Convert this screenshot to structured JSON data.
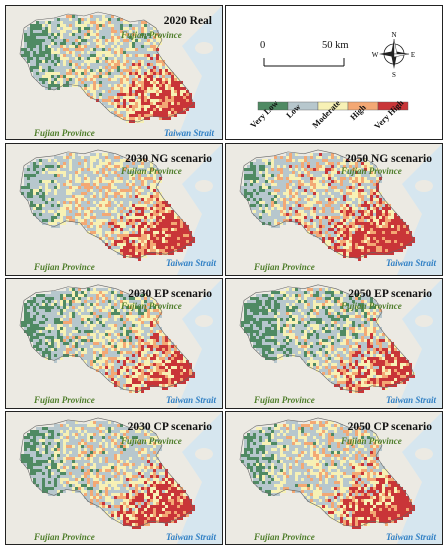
{
  "panels": [
    {
      "title": "2020 Real",
      "province_top": "Fujian Province",
      "province_bottom": "Fujian Province",
      "strait": "Taiwan Strait"
    },
    {
      "title": "2030 NG scenario",
      "province_top": "Fujian Province",
      "province_bottom": "Fujian Province",
      "strait": "Taiwan Strait"
    },
    {
      "title": "2050 NG scenario",
      "province_top": "Fujian Province",
      "province_bottom": "Fujian Province",
      "strait": "Taiwan Strait"
    },
    {
      "title": "2030 EP scenario",
      "province_top": "Fujian Province",
      "province_bottom": "Fujian Province",
      "strait": "Taiwan Strait"
    },
    {
      "title": "2050 EP scenario",
      "province_top": "Fujian Province",
      "province_bottom": "Fujian Province",
      "strait": "Taiwan Strait"
    },
    {
      "title": "2030 CP scenario",
      "province_top": "Fujian Province",
      "province_bottom": "Fujian Province",
      "strait": "Taiwan Strait"
    },
    {
      "title": "2050 CP scenario",
      "province_top": "Fujian Province",
      "province_bottom": "Fujian Province",
      "strait": "Taiwan Strait"
    }
  ],
  "scale": {
    "start": "0",
    "end": "50 km"
  },
  "compass": {
    "n": "N",
    "s": "S",
    "e": "E",
    "w": "W"
  },
  "legend": [
    {
      "label": "Very Low",
      "color": "#4f8a63"
    },
    {
      "label": "Low",
      "color": "#b7c7cd"
    },
    {
      "label": "Moderate",
      "color": "#f7f1b5"
    },
    {
      "label": "High",
      "color": "#f3a874"
    },
    {
      "label": "Very High",
      "color": "#c93538"
    }
  ],
  "colors": {
    "sea": "#d6e6ef",
    "land_bg": "#eceae3",
    "very_low": "#4f8a63",
    "low": "#b7c7cd",
    "moderate": "#f7f1b5",
    "high": "#f3a874",
    "very_high": "#c93538"
  }
}
